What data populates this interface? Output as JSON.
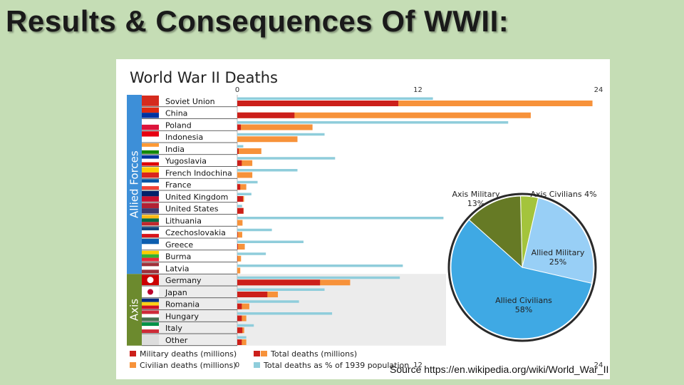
{
  "slide": {
    "title": "Results  & Consequences Of WWII:",
    "source": "Source https://en.wikipedia.org/wiki/World_War_II"
  },
  "chart_data": [
    {
      "type": "bar",
      "title": "World War II Deaths",
      "xlim": [
        0,
        24
      ],
      "top_ticks": [
        "0",
        "12",
        "24"
      ],
      "bottom_ticks": [
        "0",
        "12",
        "24"
      ],
      "groups": [
        {
          "name": "Allied Forces",
          "color": "#3d8fd8",
          "countries": 15
        },
        {
          "name": "Axis",
          "color": "#6c8a2e",
          "countries": 6
        }
      ],
      "series": [
        {
          "name": "Military deaths (millions)",
          "color": "#cc1f1a"
        },
        {
          "name": "Civilian deaths (millions)",
          "color": "#f7923a"
        },
        {
          "name": "Total deaths (millions)",
          "color": "#f7923a"
        },
        {
          "name": "Total deaths as % of 1939 population",
          "color": "#8fcddb"
        }
      ],
      "legend": [
        {
          "label": "Military deaths (millions)",
          "swatches": [
            "#cc1f1a"
          ]
        },
        {
          "label": "Total deaths (millions)",
          "swatches": [
            "#cc1f1a",
            "#f7923a"
          ]
        },
        {
          "label": "Civilian deaths (millions)",
          "swatches": [
            "#f7923a"
          ]
        },
        {
          "label": "Total deaths as % of 1939 population",
          "swatches": [
            "#8fcddb"
          ]
        }
      ],
      "countries": [
        {
          "name": "Soviet Union",
          "group": "Allied Forces",
          "military": 10.7,
          "total": 23.6,
          "pct": 13.0
        },
        {
          "name": "China",
          "group": "Allied Forces",
          "military": 3.8,
          "total": 19.5,
          "pct": 0
        },
        {
          "name": "Poland",
          "group": "Allied Forces",
          "military": 0.24,
          "total": 5.0,
          "pct": 18.0
        },
        {
          "name": "Indonesia",
          "group": "Allied Forces",
          "military": 0,
          "total": 4.0,
          "pct": 5.8
        },
        {
          "name": "India",
          "group": "Allied Forces",
          "military": 0.09,
          "total": 1.6,
          "pct": 0.4
        },
        {
          "name": "Yugoslavia",
          "group": "Allied Forces",
          "military": 0.3,
          "total": 1.0,
          "pct": 6.5
        },
        {
          "name": "French Indochina",
          "group": "Allied Forces",
          "military": 0,
          "total": 1.0,
          "pct": 4.0
        },
        {
          "name": "France",
          "group": "Allied Forces",
          "military": 0.2,
          "total": 0.6,
          "pct": 1.35
        },
        {
          "name": "United Kingdom",
          "group": "Allied Forces",
          "military": 0.38,
          "total": 0.45,
          "pct": 0.94
        },
        {
          "name": "United States",
          "group": "Allied Forces",
          "military": 0.41,
          "total": 0.42,
          "pct": 0.32
        },
        {
          "name": "Lithuania",
          "group": "Allied Forces",
          "military": 0,
          "total": 0.35,
          "pct": 13.7
        },
        {
          "name": "Czechoslovakia",
          "group": "Allied Forces",
          "military": 0.03,
          "total": 0.33,
          "pct": 2.3
        },
        {
          "name": "Greece",
          "group": "Allied Forces",
          "military": 0.04,
          "total": 0.5,
          "pct": 4.4
        },
        {
          "name": "Burma",
          "group": "Allied Forces",
          "military": 0.02,
          "total": 0.25,
          "pct": 1.9
        },
        {
          "name": "Latvia",
          "group": "Allied Forces",
          "military": 0,
          "total": 0.2,
          "pct": 11.0
        },
        {
          "name": "Germany",
          "group": "Axis",
          "military": 5.5,
          "total": 7.5,
          "pct": 10.8
        },
        {
          "name": "Japan",
          "group": "Axis",
          "military": 2.0,
          "total": 2.7,
          "pct": 5.8
        },
        {
          "name": "Romania",
          "group": "Axis",
          "military": 0.3,
          "total": 0.8,
          "pct": 4.1
        },
        {
          "name": "Hungary",
          "group": "Axis",
          "military": 0.3,
          "total": 0.6,
          "pct": 6.3
        },
        {
          "name": "Italy",
          "group": "Axis",
          "military": 0.34,
          "total": 0.46,
          "pct": 1.1
        },
        {
          "name": "Other",
          "group": "Axis",
          "military": 0.3,
          "total": 0.6,
          "pct": 0.6
        }
      ]
    },
    {
      "type": "pie",
      "slices": [
        {
          "label": "Axis Civilians",
          "pct_label": "4%",
          "value": 4,
          "color": "#a4c43c"
        },
        {
          "label": "Allied Military",
          "pct_label": "25%",
          "value": 25,
          "color": "#98cff6"
        },
        {
          "label": "Allied Civilians",
          "pct_label": "58%",
          "value": 58,
          "color": "#3fa9e4"
        },
        {
          "label": "Axis Military",
          "pct_label": "13%",
          "value": 13,
          "color": "#667a25"
        }
      ]
    }
  ]
}
